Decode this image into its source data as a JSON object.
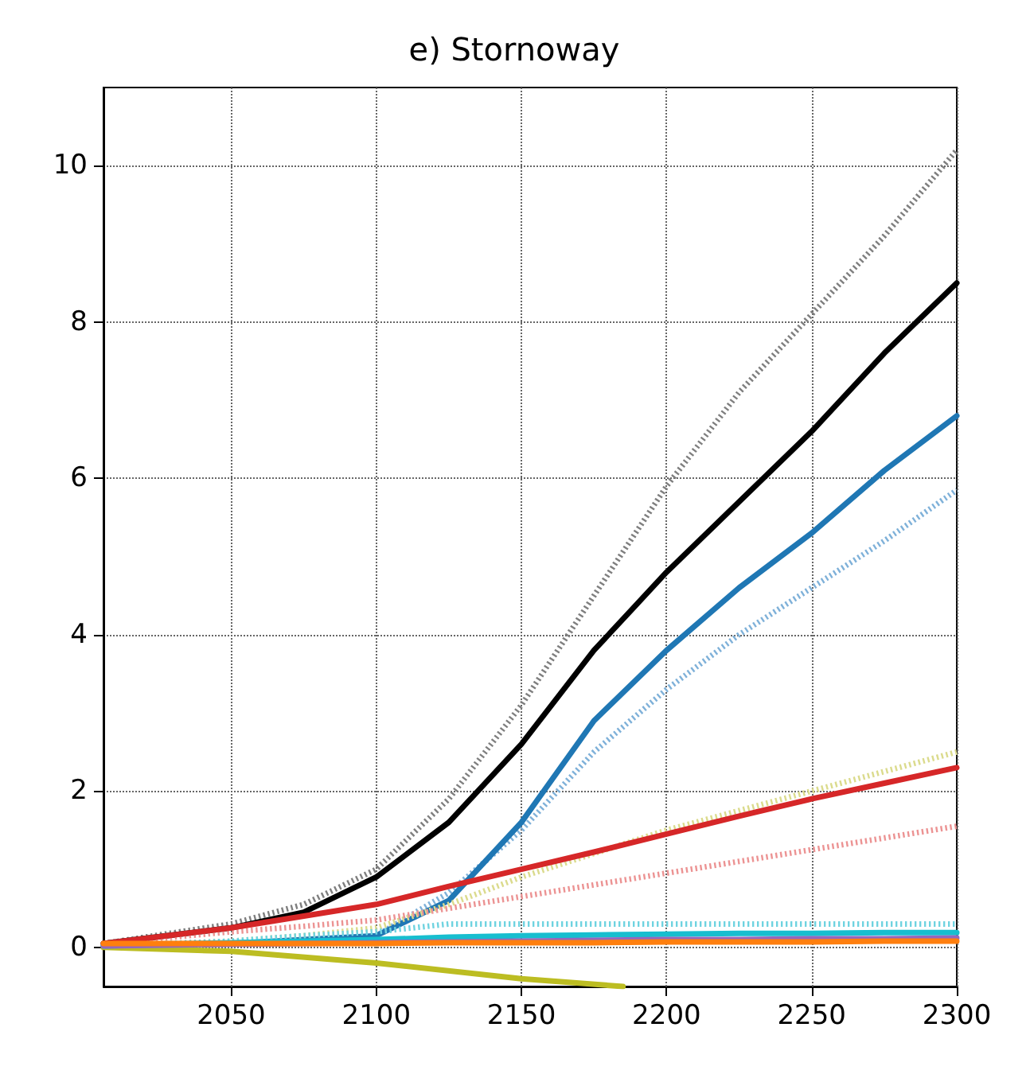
{
  "chart_data": {
    "type": "line",
    "title": "e) Stornoway",
    "x": [
      2006,
      2050,
      2075,
      2100,
      2125,
      2150,
      2175,
      2200,
      2225,
      2250,
      2275,
      2300
    ],
    "xlim": [
      2006,
      2300
    ],
    "ylim": [
      -0.5,
      11
    ],
    "xticks": [
      2050,
      2100,
      2150,
      2200,
      2250,
      2300
    ],
    "yticks": [
      0,
      2,
      4,
      6,
      8,
      10
    ],
    "grid": true,
    "marker": "none",
    "series": [
      {
        "color": "#7f7f7f",
        "line_style": "dotted",
        "values": [
          0.05,
          0.3,
          0.55,
          1.0,
          1.9,
          3.1,
          4.5,
          5.9,
          7.1,
          8.1,
          9.1,
          10.2
        ]
      },
      {
        "color": "#000000",
        "line_style": "solid",
        "values": [
          0.05,
          0.25,
          0.45,
          0.9,
          1.6,
          2.6,
          3.8,
          4.8,
          5.7,
          6.6,
          7.6,
          8.5
        ]
      },
      {
        "color": "#7fb1d9",
        "line_style": "dotted",
        "values": [
          0.02,
          0.04,
          0.08,
          0.15,
          0.7,
          1.5,
          2.5,
          3.3,
          4.0,
          4.6,
          5.2,
          5.85
        ]
      },
      {
        "color": "#1f77b4",
        "line_style": "solid",
        "values": [
          0.02,
          0.05,
          0.1,
          0.15,
          0.6,
          1.6,
          2.9,
          3.8,
          4.6,
          5.3,
          6.1,
          6.8
        ]
      },
      {
        "color": "#dbdb8d",
        "line_style": "dotted",
        "values": [
          0.02,
          0.08,
          0.15,
          0.25,
          0.55,
          0.9,
          1.2,
          1.5,
          1.75,
          2.0,
          2.25,
          2.5
        ]
      },
      {
        "color": "#ec9393",
        "line_style": "dotted",
        "values": [
          0.05,
          0.2,
          0.27,
          0.35,
          0.5,
          0.65,
          0.8,
          0.95,
          1.1,
          1.25,
          1.4,
          1.55
        ]
      },
      {
        "color": "#d62728",
        "line_style": "solid",
        "values": [
          0.05,
          0.25,
          0.4,
          0.55,
          0.78,
          1.0,
          1.22,
          1.45,
          1.68,
          1.9,
          2.1,
          2.3
        ]
      },
      {
        "color": "#bcbd22",
        "line_style": "solid",
        "x": [
          2006,
          2050,
          2100,
          2150,
          2185
        ],
        "values": [
          0.0,
          -0.05,
          -0.2,
          -0.4,
          -0.5
        ]
      },
      {
        "color": "#6fd3e0",
        "line_style": "dotted",
        "values": [
          0.02,
          0.08,
          0.15,
          0.2,
          0.3,
          0.3,
          0.3,
          0.3,
          0.3,
          0.3,
          0.3,
          0.3
        ]
      },
      {
        "color": "#17becf",
        "line_style": "solid",
        "values": [
          0.02,
          0.06,
          0.08,
          0.1,
          0.13,
          0.15,
          0.16,
          0.17,
          0.18,
          0.18,
          0.19,
          0.19
        ]
      },
      {
        "color": "#9467bd",
        "line_style": "solid",
        "values": [
          0.02,
          0.04,
          0.05,
          0.06,
          0.07,
          0.08,
          0.09,
          0.1,
          0.1,
          0.11,
          0.11,
          0.12
        ]
      },
      {
        "color": "#ff7f0e",
        "line_style": "solid",
        "values": [
          0.05,
          0.05,
          0.05,
          0.05,
          0.06,
          0.06,
          0.06,
          0.07,
          0.07,
          0.07,
          0.08,
          0.08
        ]
      }
    ]
  }
}
